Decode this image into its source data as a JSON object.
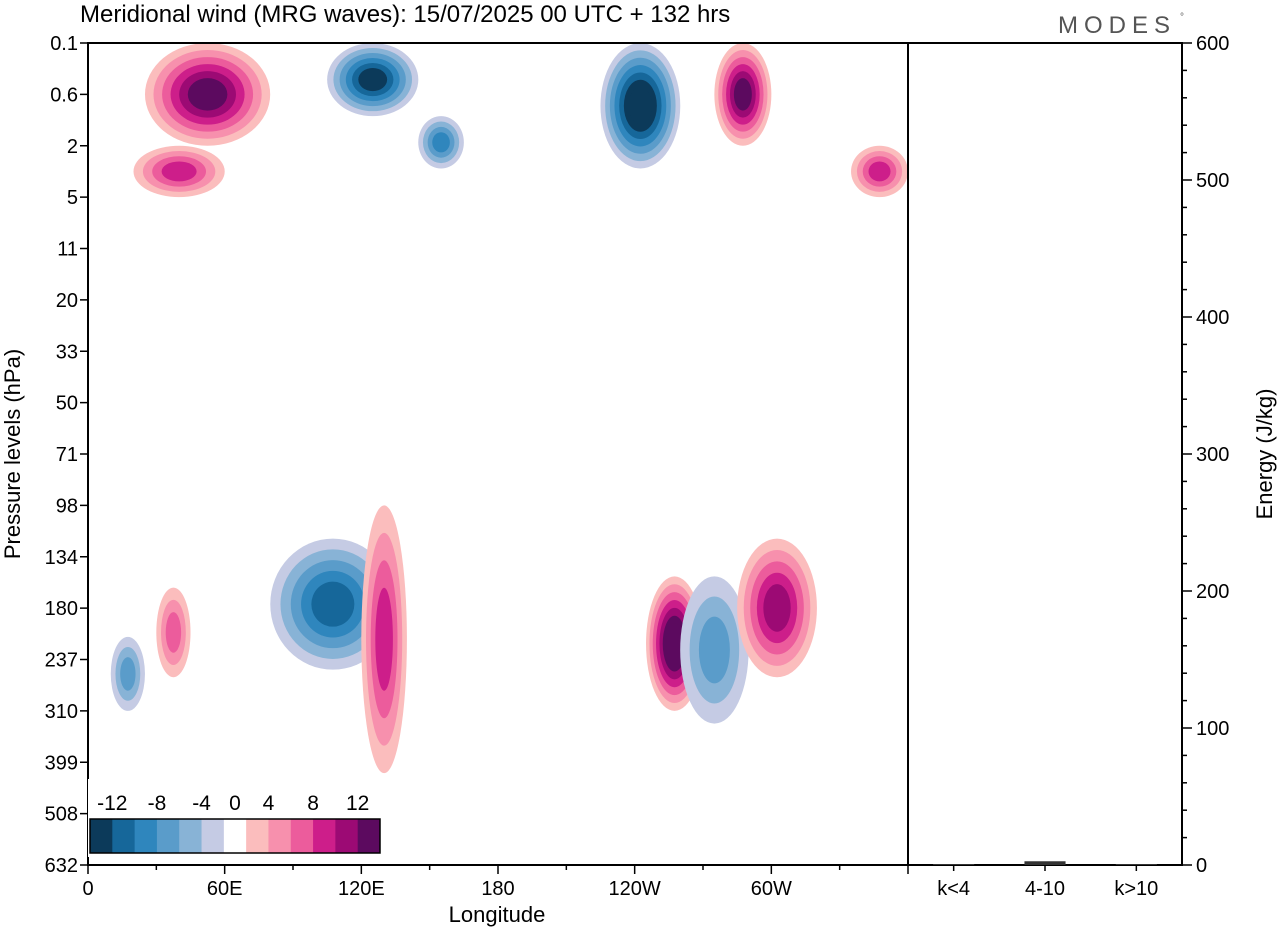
{
  "header": {
    "title": "Meridional wind (MRG waves):  15/07/2025  00 UTC  + 132 hrs",
    "brand": "MODES",
    "brand_mark": "°"
  },
  "chart_data": [
    {
      "type": "heatmap",
      "title": "Meridional wind (MRG waves):  15/07/2025  00 UTC  + 132 hrs",
      "xlabel": "Longitude",
      "ylabel": "Pressure levels (hPa)",
      "x_ticks": [
        "0",
        "60E",
        "120E",
        "180",
        "120W",
        "60W"
      ],
      "x_tick_degrees": [
        0,
        60,
        120,
        180,
        240,
        300
      ],
      "xlim": [
        0,
        360
      ],
      "y_ticks": [
        "0.1",
        "0.6",
        "2",
        "5",
        "11",
        "20",
        "33",
        "50",
        "71",
        "98",
        "134",
        "180",
        "237",
        "310",
        "399",
        "508",
        "632"
      ],
      "colorbar": {
        "labels": [
          "-12",
          "-8",
          "-4",
          "0",
          "4",
          "8",
          "12"
        ],
        "label_values": [
          -12,
          -8,
          -4,
          0,
          4,
          8,
          12
        ],
        "levels": [
          -14,
          -12,
          -10,
          -8,
          -6,
          -4,
          -2,
          2,
          4,
          6,
          8,
          10,
          12,
          14
        ],
        "colors": [
          "#0c3a5a",
          "#16679a",
          "#2f86bd",
          "#5a9cca",
          "#88b3d6",
          "#c5cbe4",
          "#ffffff",
          "#fbbdbd",
          "#f790ad",
          "#ec5c9c",
          "#cd1e8a",
          "#9c0a74",
          "#5c0a5f"
        ],
        "placement": "bottom-left inset"
      },
      "features": [
        {
          "sign": "positive",
          "lon": [
            25,
            80
          ],
          "levels": [
            "0.1",
            "2"
          ],
          "peak": 12
        },
        {
          "sign": "positive",
          "lon": [
            20,
            60
          ],
          "levels": [
            "2",
            "5"
          ],
          "peak": 8
        },
        {
          "sign": "negative",
          "lon": [
            105,
            145
          ],
          "levels": [
            "0.1",
            "1"
          ],
          "peak": -12
        },
        {
          "sign": "negative",
          "lon": [
            145,
            165
          ],
          "levels": [
            "1",
            "3"
          ],
          "peak": -8
        },
        {
          "sign": "negative",
          "lon": [
            225,
            260
          ],
          "levels": [
            "0.1",
            "3"
          ],
          "peak": -14
        },
        {
          "sign": "positive",
          "lon": [
            275,
            300
          ],
          "levels": [
            "0.1",
            "2"
          ],
          "peak": 12
        },
        {
          "sign": "positive",
          "lon": [
            335,
            360
          ],
          "levels": [
            "2",
            "5"
          ],
          "peak": 8
        },
        {
          "sign": "negative",
          "lon": [
            80,
            135
          ],
          "levels": [
            "120",
            "250"
          ],
          "peak": -10
        },
        {
          "sign": "positive",
          "lon": [
            120,
            140
          ],
          "levels": [
            "98",
            "420"
          ],
          "peak": 8
        },
        {
          "sign": "positive",
          "lon": [
            245,
            270
          ],
          "levels": [
            "150",
            "310"
          ],
          "peak": 14
        },
        {
          "sign": "negative",
          "lon": [
            260,
            290
          ],
          "levels": [
            "150",
            "330"
          ],
          "peak": -6
        },
        {
          "sign": "positive",
          "lon": [
            285,
            320
          ],
          "levels": [
            "120",
            "260"
          ],
          "peak": 10
        },
        {
          "sign": "negative",
          "lon": [
            10,
            25
          ],
          "levels": [
            "210",
            "310"
          ],
          "peak": -6
        },
        {
          "sign": "positive",
          "lon": [
            30,
            45
          ],
          "levels": [
            "160",
            "260"
          ],
          "peak": 6
        }
      ]
    },
    {
      "type": "bar",
      "ylabel": "Energy (J/kg)",
      "categories": [
        "k<4",
        "4-10",
        "k>10"
      ],
      "values": [
        0,
        2,
        0
      ],
      "ylim": [
        0,
        600
      ],
      "y_ticks": [
        "0",
        "100",
        "200",
        "300",
        "400",
        "500",
        "600"
      ],
      "y_tick_values": [
        0,
        100,
        200,
        300,
        400,
        500,
        600
      ]
    }
  ]
}
